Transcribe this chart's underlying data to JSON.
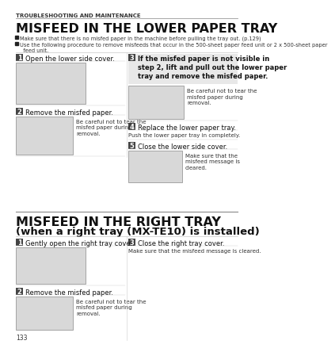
{
  "bg_color": "#ffffff",
  "header_text": "TROUBLESHOOTING AND MAINTENANCE",
  "section1_title": "MISFEED IN THE LOWER PAPER TRAY",
  "bullet1": "Make sure that there is no misfed paper in the machine before pulling the tray out. (p.129)",
  "bullet2": "Use the following procedure to remove misfeeds that occur in the 500-sheet paper feed unit or 2 x 500-sheet paper\n  feed unit.",
  "s1_step1_title": "Open the lower side cover.",
  "s1_step2_title": "Remove the misfed paper.",
  "s1_step2_note": "Be careful not to tear the\nmisfed paper during\nremoval.",
  "s1_step3_title": "If the misfed paper is not visible in\nstep 2, lift and pull out the lower paper\ntray and remove the misfed paper.",
  "s1_step3_note": "Be careful not to tear the\nmisfed paper during\nremoval.",
  "s1_step4_title": "Replace the lower paper tray.",
  "s1_step4_note": "Push the lower paper tray in completely.",
  "s1_step5_title": "Close the lower side cover.",
  "s1_step5_note": "Make sure that the\nmisfeed message is\ncleared.",
  "section2_title1": "MISFEED IN THE RIGHT TRAY",
  "section2_title2": "(when a right tray (MX-TE10) is installed)",
  "s2_step1_title": "Gently open the right tray cover.",
  "s2_step2_title": "Remove the misfed paper.",
  "s2_step2_note": "Be careful not to tear the\nmisfed paper during\nremoval.",
  "s2_step3_title": "Close the right tray cover.",
  "s2_step3_note": "Make sure that the misfeed message is cleared.",
  "page_number": "133",
  "header_fontsize": 5.0,
  "title1_fontsize": 11.5,
  "title2_fontsize": 9.5,
  "bullet_fontsize": 4.8,
  "step_label_fontsize": 6.0,
  "step_title_fontsize": 6.0,
  "step_title_bold_fontsize": 6.0,
  "note_fontsize": 5.0,
  "page_fontsize": 5.5,
  "step_box_color": "#444444",
  "step_box_text_color": "#ffffff",
  "step3_bg": "#e8e8e8",
  "img_box_color": "#d8d8d8",
  "img_border_color": "#888888",
  "line_color": "#aaaaaa",
  "title_color": "#111111",
  "text_color": "#333333",
  "header_color": "#333333"
}
